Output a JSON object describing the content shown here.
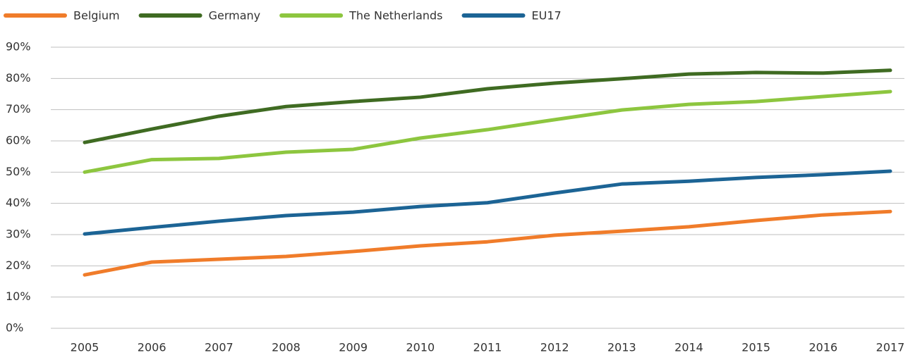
{
  "chart_data": {
    "type": "line",
    "categories": [
      "2005",
      "2006",
      "2007",
      "2008",
      "2009",
      "2010",
      "2011",
      "2012",
      "2013",
      "2014",
      "2015",
      "2016",
      "2017"
    ],
    "series": [
      {
        "name": "Belgium",
        "color": "#f07c2a",
        "values": [
          17.1,
          21.2,
          22.1,
          23.0,
          24.6,
          26.4,
          27.7,
          29.8,
          31.1,
          32.5,
          34.5,
          36.3,
          37.4
        ]
      },
      {
        "name": "Germany",
        "color": "#3f6b22",
        "values": [
          59.5,
          63.8,
          67.9,
          71.0,
          72.6,
          74.0,
          76.7,
          78.5,
          79.9,
          81.4,
          81.9,
          81.7,
          82.6
        ]
      },
      {
        "name": "The Netherlands",
        "color": "#8dc63f",
        "values": [
          50.0,
          54.0,
          54.4,
          56.4,
          57.3,
          60.9,
          63.6,
          66.8,
          69.9,
          71.7,
          72.6,
          74.2,
          75.8
        ]
      },
      {
        "name": "EU17",
        "color": "#1c6495",
        "values": [
          30.2,
          32.3,
          34.3,
          36.1,
          37.2,
          39.0,
          40.2,
          43.3,
          46.2,
          47.1,
          48.3,
          49.2,
          50.3
        ]
      }
    ],
    "ylim": [
      0,
      90
    ],
    "yticks": [
      {
        "value": 0,
        "label": "0%"
      },
      {
        "value": 10,
        "label": "10%"
      },
      {
        "value": 20,
        "label": "20%"
      },
      {
        "value": 30,
        "label": "30%"
      },
      {
        "value": 40,
        "label": "40%"
      },
      {
        "value": 50,
        "label": "50%"
      },
      {
        "value": 60,
        "label": "60%"
      },
      {
        "value": 70,
        "label": "70%"
      },
      {
        "value": 80,
        "label": "80%"
      },
      {
        "value": 90,
        "label": "90%"
      }
    ],
    "grid": true,
    "legend": "top-left"
  }
}
